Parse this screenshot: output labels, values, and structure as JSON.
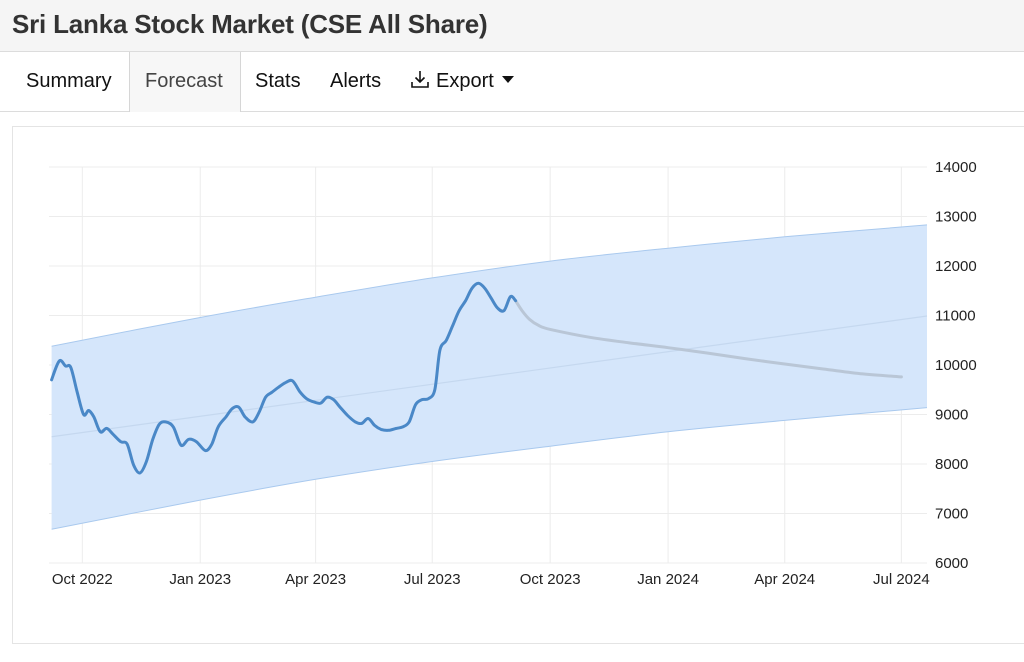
{
  "page": {
    "title": "Sri Lanka Stock Market (CSE All Share)"
  },
  "tabs": [
    {
      "label": "Summary",
      "active": false
    },
    {
      "label": "Forecast",
      "active": true
    },
    {
      "label": "Stats",
      "active": false
    },
    {
      "label": "Alerts",
      "active": false
    },
    {
      "label": "Export",
      "active": false,
      "icon": "download-icon",
      "dropdown": true
    }
  ],
  "colors": {
    "history_line": "#4a88c7",
    "forecast_line": "#b9c6d6",
    "band_fill": "#d5e6fb",
    "band_edge": "#a9c9ee",
    "trend_line": "#c5d8ef",
    "grid": "#ececec"
  },
  "chart_data": {
    "type": "line",
    "title": "",
    "xlabel": "",
    "ylabel": "",
    "ylim": [
      6000,
      14000
    ],
    "y_ticks": [
      6000,
      7000,
      8000,
      9000,
      10000,
      11000,
      12000,
      13000,
      14000
    ],
    "y_axis_side": "right",
    "grid": true,
    "x_ticks": [
      {
        "label": "Oct 2022",
        "date": "2022-10-01"
      },
      {
        "label": "Jan 2023",
        "date": "2023-01-01"
      },
      {
        "label": "Apr 2023",
        "date": "2023-04-01"
      },
      {
        "label": "Jul 2023",
        "date": "2023-07-01"
      },
      {
        "label": "Oct 2023",
        "date": "2023-10-01"
      },
      {
        "label": "Jan 2024",
        "date": "2024-01-01"
      },
      {
        "label": "Apr 2024",
        "date": "2024-04-01"
      },
      {
        "label": "Jul 2024",
        "date": "2024-07-01"
      }
    ],
    "x_range": [
      "2022-09-05",
      "2024-07-21"
    ],
    "series": [
      {
        "role": "history",
        "points": [
          [
            "2022-09-07",
            9700
          ],
          [
            "2022-09-13",
            10080
          ],
          [
            "2022-09-18",
            9980
          ],
          [
            "2022-09-22",
            9950
          ],
          [
            "2022-09-27",
            9450
          ],
          [
            "2022-10-02",
            9000
          ],
          [
            "2022-10-06",
            9080
          ],
          [
            "2022-10-10",
            8950
          ],
          [
            "2022-10-15",
            8650
          ],
          [
            "2022-10-20",
            8720
          ],
          [
            "2022-10-25",
            8600
          ],
          [
            "2022-10-31",
            8450
          ],
          [
            "2022-11-05",
            8400
          ],
          [
            "2022-11-10",
            7980
          ],
          [
            "2022-11-15",
            7820
          ],
          [
            "2022-11-20",
            8050
          ],
          [
            "2022-11-25",
            8500
          ],
          [
            "2022-11-30",
            8800
          ],
          [
            "2022-12-05",
            8850
          ],
          [
            "2022-12-11",
            8750
          ],
          [
            "2022-12-17",
            8380
          ],
          [
            "2022-12-23",
            8500
          ],
          [
            "2022-12-29",
            8450
          ],
          [
            "2023-01-05",
            8270
          ],
          [
            "2023-01-10",
            8400
          ],
          [
            "2023-01-15",
            8750
          ],
          [
            "2023-01-21",
            8950
          ],
          [
            "2023-01-26",
            9120
          ],
          [
            "2023-01-31",
            9150
          ],
          [
            "2023-02-05",
            8950
          ],
          [
            "2023-02-11",
            8850
          ],
          [
            "2023-02-16",
            9050
          ],
          [
            "2023-02-21",
            9350
          ],
          [
            "2023-02-26",
            9450
          ],
          [
            "2023-03-03",
            9550
          ],
          [
            "2023-03-09",
            9650
          ],
          [
            "2023-03-14",
            9680
          ],
          [
            "2023-03-20",
            9450
          ],
          [
            "2023-03-25",
            9320
          ],
          [
            "2023-03-31",
            9250
          ],
          [
            "2023-04-05",
            9230
          ],
          [
            "2023-04-10",
            9350
          ],
          [
            "2023-04-15",
            9300
          ],
          [
            "2023-04-20",
            9150
          ],
          [
            "2023-04-26",
            8980
          ],
          [
            "2023-05-02",
            8850
          ],
          [
            "2023-05-07",
            8820
          ],
          [
            "2023-05-12",
            8920
          ],
          [
            "2023-05-17",
            8780
          ],
          [
            "2023-05-22",
            8700
          ],
          [
            "2023-05-28",
            8680
          ],
          [
            "2023-06-03",
            8720
          ],
          [
            "2023-06-08",
            8750
          ],
          [
            "2023-06-13",
            8850
          ],
          [
            "2023-06-18",
            9200
          ],
          [
            "2023-06-23",
            9300
          ],
          [
            "2023-06-28",
            9320
          ],
          [
            "2023-07-03",
            9500
          ],
          [
            "2023-07-07",
            10300
          ],
          [
            "2023-07-12",
            10500
          ],
          [
            "2023-07-17",
            10800
          ],
          [
            "2023-07-22",
            11100
          ],
          [
            "2023-07-27",
            11300
          ],
          [
            "2023-08-01",
            11550
          ],
          [
            "2023-08-06",
            11650
          ],
          [
            "2023-08-11",
            11550
          ],
          [
            "2023-08-16",
            11350
          ],
          [
            "2023-08-21",
            11150
          ],
          [
            "2023-08-26",
            11100
          ],
          [
            "2023-08-31",
            11380
          ],
          [
            "2023-09-04",
            11300
          ]
        ]
      },
      {
        "role": "forecast",
        "points": [
          [
            "2023-09-04",
            11300
          ],
          [
            "2023-09-09",
            11100
          ],
          [
            "2023-09-15",
            10920
          ],
          [
            "2023-09-22",
            10800
          ],
          [
            "2023-10-01",
            10720
          ],
          [
            "2023-11-01",
            10560
          ],
          [
            "2023-12-01",
            10450
          ],
          [
            "2024-01-01",
            10350
          ],
          [
            "2024-02-01",
            10240
          ],
          [
            "2024-03-01",
            10130
          ],
          [
            "2024-04-01",
            10020
          ],
          [
            "2024-05-01",
            9920
          ],
          [
            "2024-06-01",
            9820
          ],
          [
            "2024-07-01",
            9760
          ]
        ]
      },
      {
        "role": "trend",
        "points": [
          [
            "2022-09-07",
            8550
          ],
          [
            "2024-07-21",
            10990
          ]
        ]
      },
      {
        "role": "band_upper",
        "points": [
          [
            "2022-09-07",
            10380
          ],
          [
            "2023-01-01",
            10960
          ],
          [
            "2023-04-01",
            11370
          ],
          [
            "2023-07-01",
            11760
          ],
          [
            "2023-10-01",
            12100
          ],
          [
            "2024-01-01",
            12360
          ],
          [
            "2024-04-01",
            12590
          ],
          [
            "2024-07-21",
            12830
          ]
        ]
      },
      {
        "role": "band_lower",
        "points": [
          [
            "2022-09-07",
            6680
          ],
          [
            "2023-01-01",
            7270
          ],
          [
            "2023-04-01",
            7690
          ],
          [
            "2023-07-01",
            8050
          ],
          [
            "2023-10-01",
            8360
          ],
          [
            "2024-01-01",
            8650
          ],
          [
            "2024-04-01",
            8880
          ],
          [
            "2024-07-21",
            9140
          ]
        ]
      }
    ]
  }
}
